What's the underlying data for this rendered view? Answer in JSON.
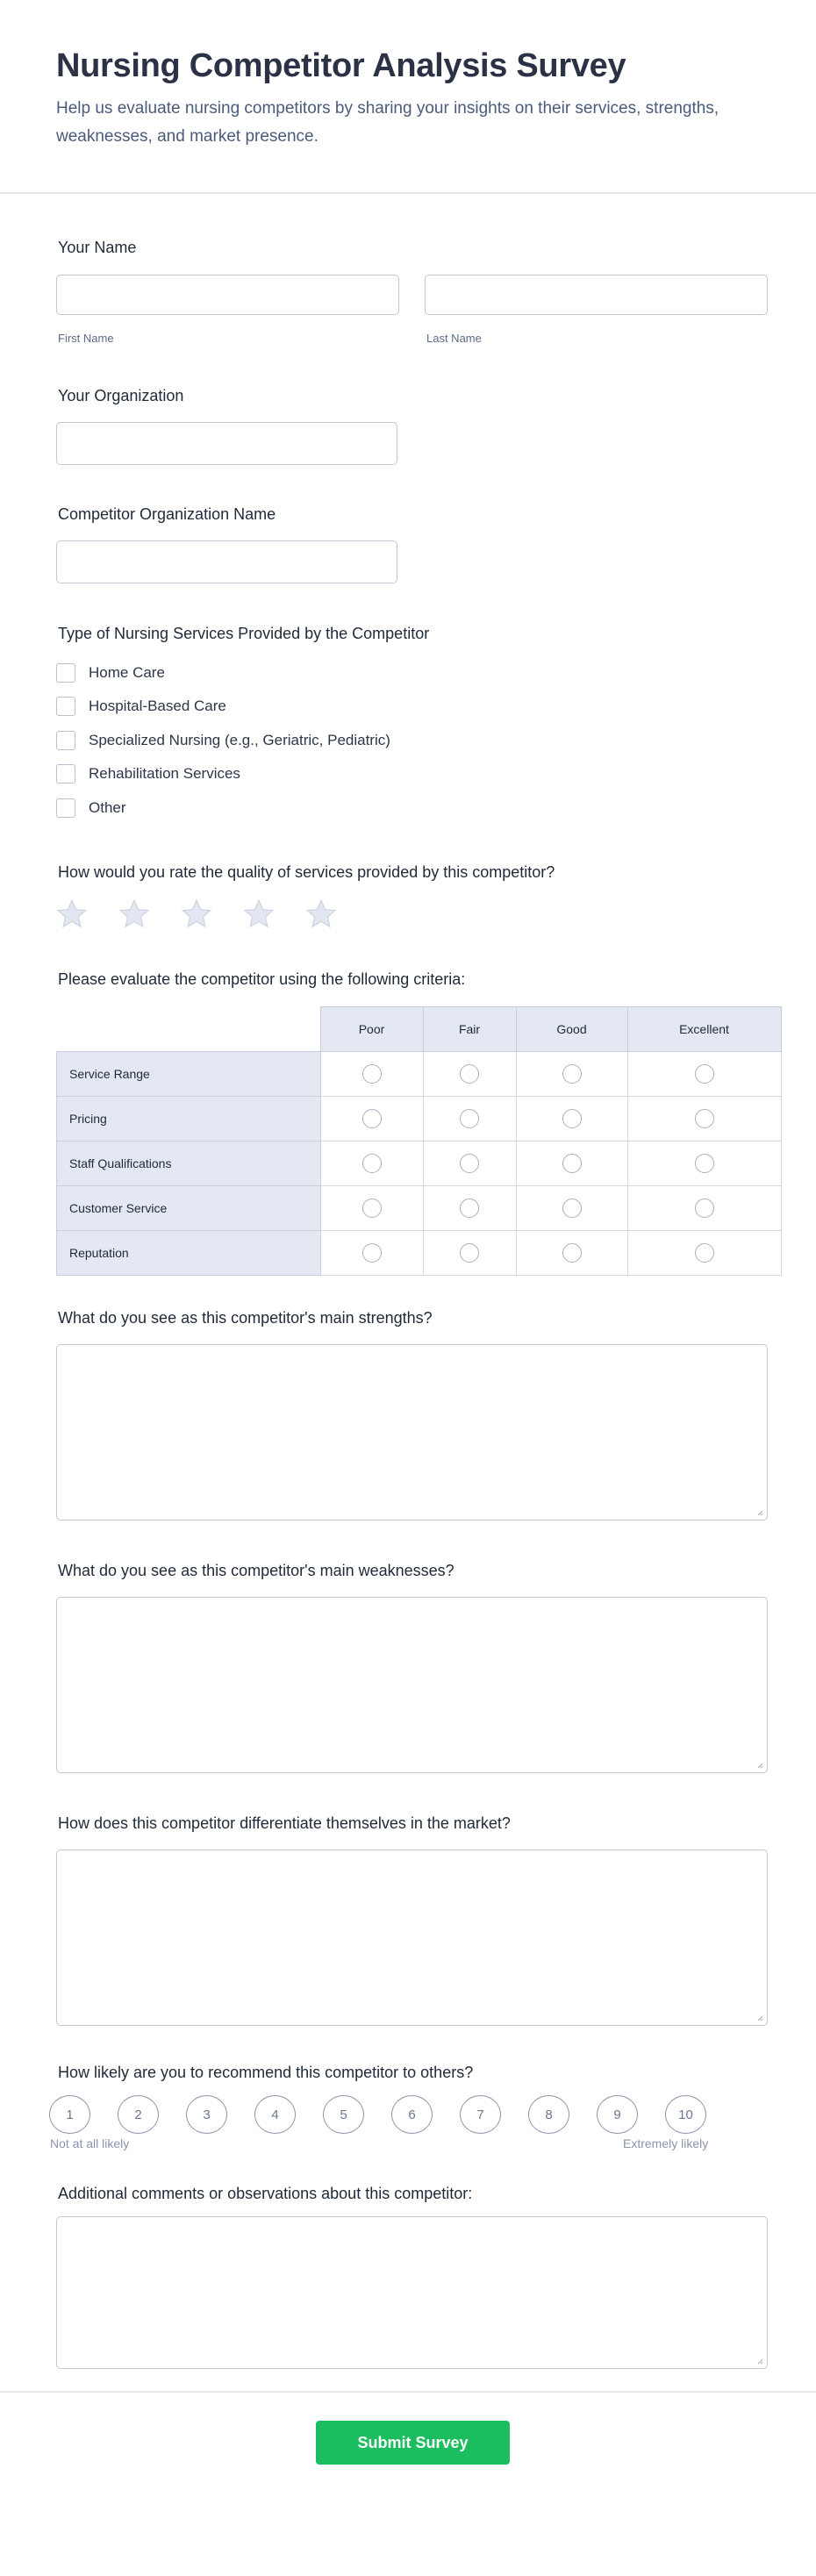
{
  "header": {
    "title": "Nursing Competitor Analysis Survey",
    "subtitle": "Help us evaluate nursing competitors by sharing your insights on their services, strengths, weaknesses, and market presence."
  },
  "name": {
    "label": "Your Name",
    "first_label": "First Name",
    "last_label": "Last Name",
    "first_value": "",
    "last_value": ""
  },
  "organization": {
    "label": "Your Organization",
    "value": ""
  },
  "competitor": {
    "label": "Competitor Organization Name",
    "value": ""
  },
  "services": {
    "label": "Type of Nursing Services Provided by the Competitor",
    "options": [
      "Home Care",
      "Hospital-Based Care",
      "Specialized Nursing (e.g., Geriatric, Pediatric)",
      "Rehabilitation Services",
      "Other"
    ]
  },
  "rating": {
    "label": "How would you rate the quality of services provided by this competitor?",
    "max": 5,
    "value": 0,
    "star_color": "#e3e7f1"
  },
  "matrix": {
    "label": "Please evaluate the competitor using the following criteria:",
    "columns": [
      "Poor",
      "Fair",
      "Good",
      "Excellent"
    ],
    "rows": [
      "Service Range",
      "Pricing",
      "Staff Qualifications",
      "Customer Service",
      "Reputation"
    ]
  },
  "strengths": {
    "label": "What do you see as this competitor's main strengths?",
    "value": ""
  },
  "weaknesses": {
    "label": "What do you see as this competitor's main weaknesses?",
    "value": ""
  },
  "differentiation": {
    "label": "How does this competitor differentiate themselves in the market?",
    "value": ""
  },
  "recommend": {
    "label": "How likely are you to recommend this competitor to others?",
    "scale": [
      "1",
      "2",
      "3",
      "4",
      "5",
      "6",
      "7",
      "8",
      "9",
      "10"
    ],
    "low_label": "Not at all likely",
    "high_label": "Extremely likely"
  },
  "comments": {
    "label": "Additional comments or observations about this competitor:",
    "value": ""
  },
  "submit": {
    "label": "Submit Survey",
    "color": "#1bbe5e"
  }
}
